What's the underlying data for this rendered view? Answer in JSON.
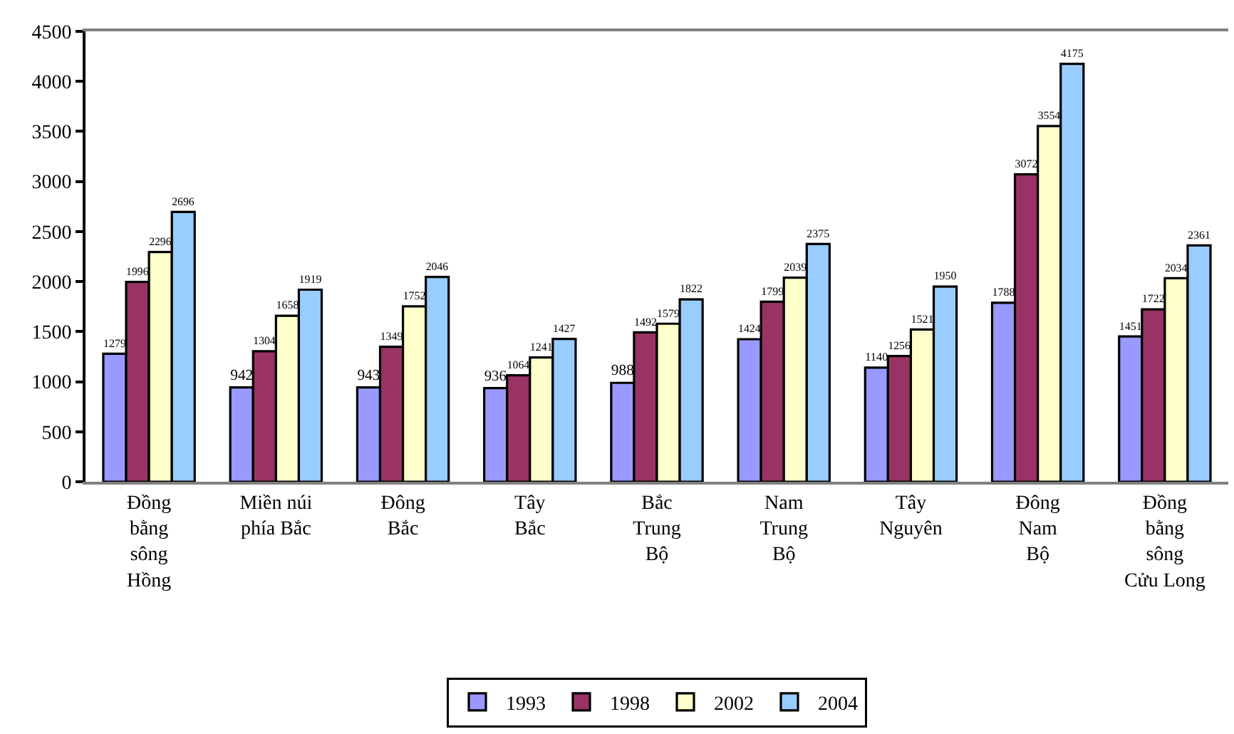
{
  "chart_data": {
    "type": "bar",
    "categories": [
      "Đồng\nbằng\nsông\nHồng",
      "Miền núi\nphía Bắc",
      "Đông\nBắc",
      "Tây\nBắc",
      "Bắc\nTrung\nBộ",
      "Nam\nTrung\nBộ",
      "Tây\nNguyên",
      "Đông\nNam\nBộ",
      "Đồng\nbằng\nsông\nCửu Long"
    ],
    "series": [
      {
        "name": "1993",
        "color": "#9999ff",
        "values": [
          1279,
          942,
          943,
          936,
          988,
          1424,
          1140,
          1788,
          1451
        ]
      },
      {
        "name": "1998",
        "color": "#993366",
        "values": [
          1996,
          1304,
          1349,
          1064,
          1492,
          1799,
          1256,
          3072,
          1722
        ]
      },
      {
        "name": "2002",
        "color": "#ffffcc",
        "values": [
          2296,
          1658,
          1752,
          1241,
          1579,
          2039,
          1521,
          3554,
          2034
        ]
      },
      {
        "name": "2004",
        "color": "#99ccff",
        "values": [
          2696,
          1919,
          2046,
          1427,
          1822,
          2375,
          1950,
          4175,
          2361
        ]
      }
    ],
    "ylim": [
      0,
      4500
    ],
    "yticks": [
      0,
      500,
      1000,
      1500,
      2000,
      2500,
      3000,
      3500,
      4000,
      4500
    ],
    "legend": "bottom",
    "data_labels": true
  }
}
